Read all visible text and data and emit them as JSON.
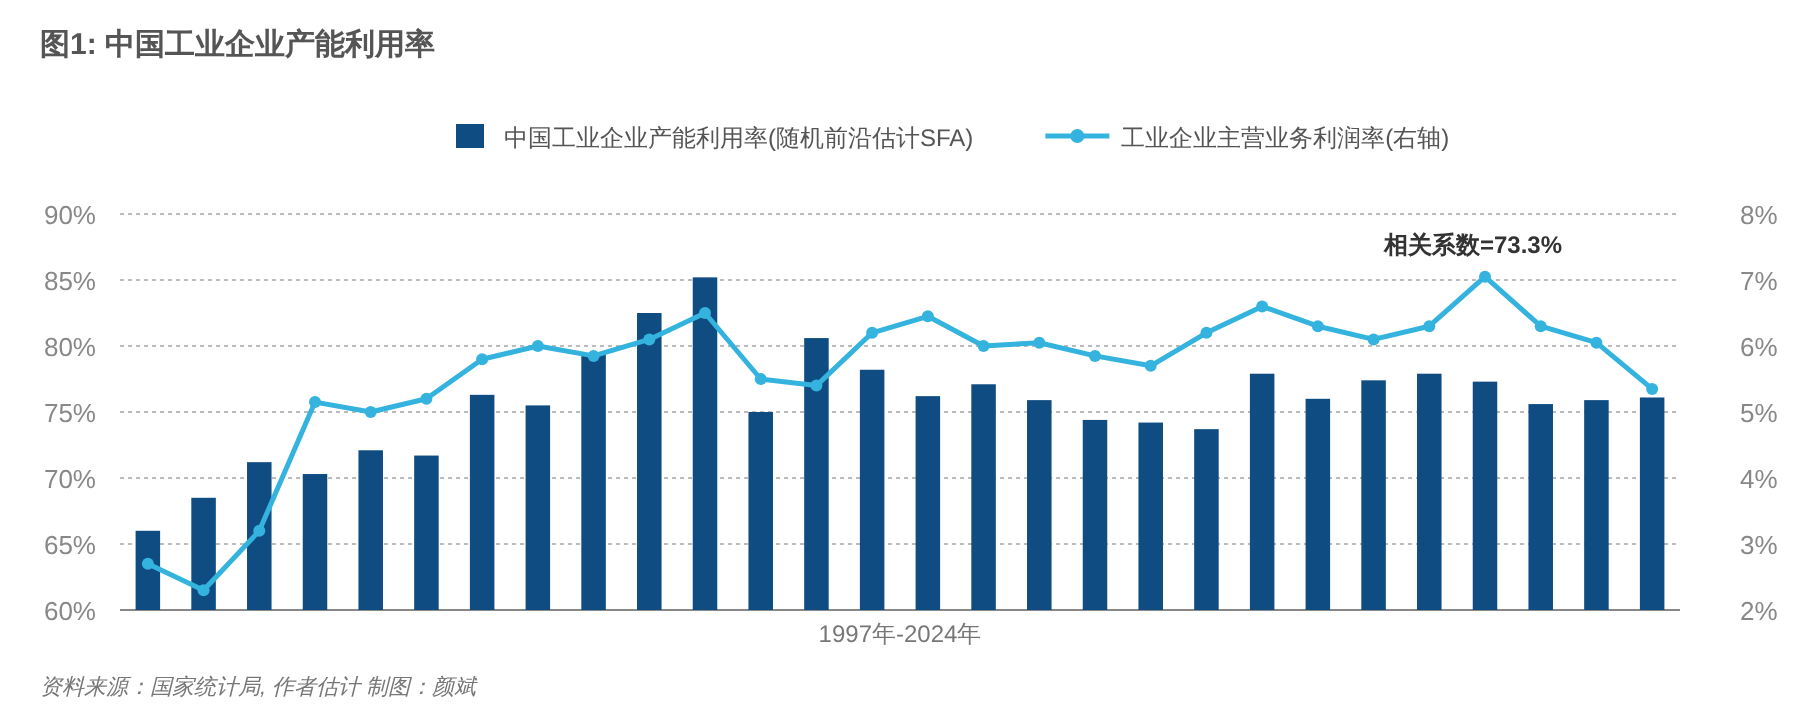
{
  "chart_data": {
    "type": "bar",
    "title": "图1: 中国工业企业产能利用率",
    "xlabel": "1997年-2024年",
    "legend": "top",
    "grid": "y",
    "marker": "circle",
    "line_style": "solid",
    "categories": [
      null,
      null,
      null,
      null,
      null,
      null,
      null,
      null,
      null,
      null,
      null,
      null,
      null,
      null,
      null,
      null,
      null,
      null,
      null,
      null,
      null,
      null,
      null,
      null,
      null,
      null,
      null,
      null
    ],
    "series": [
      {
        "name": "中国工业企业产能利用率(随机前沿估计SFA)",
        "color": "#0e4c82",
        "values": [
          66.0,
          68.5,
          71.2,
          70.3,
          72.1,
          71.7,
          76.3,
          75.5,
          79.4,
          82.5,
          85.2,
          75.0,
          80.6,
          78.2,
          76.2,
          77.1,
          75.9,
          74.4,
          74.2,
          73.7,
          77.9,
          76.0,
          77.4,
          77.9,
          77.3,
          75.6,
          75.9,
          76.1
        ]
      },
      {
        "name": "工业企业主营业务利润率(右轴)",
        "type": "line",
        "axis": "y2",
        "color": "#34b3de",
        "values": [
          2.7,
          2.3,
          3.2,
          5.15,
          5.0,
          5.2,
          5.8,
          6.0,
          5.85,
          6.1,
          6.5,
          5.5,
          5.4,
          6.2,
          6.45,
          6.0,
          6.05,
          5.85,
          5.7,
          6.2,
          6.6,
          6.3,
          6.1,
          6.3,
          7.05,
          6.3,
          6.05,
          5.35
        ]
      }
    ],
    "ylim": [
      60,
      90
    ],
    "yticks": [
      {
        "value": 60,
        "label": "60%"
      },
      {
        "value": 65,
        "label": "65%"
      },
      {
        "value": 70,
        "label": "70%"
      },
      {
        "value": 75,
        "label": "75%"
      },
      {
        "value": 80,
        "label": "80%"
      },
      {
        "value": 85,
        "label": "85%"
      },
      {
        "value": 90,
        "label": "90%"
      }
    ],
    "y2lim": [
      2,
      8
    ],
    "y2ticks": [
      {
        "value": 2,
        "label": "2%"
      },
      {
        "value": 3,
        "label": "3%"
      },
      {
        "value": 4,
        "label": "4%"
      },
      {
        "value": 5,
        "label": "5%"
      },
      {
        "value": 6,
        "label": "6%"
      },
      {
        "value": 7,
        "label": "7%"
      },
      {
        "value": 8,
        "label": "8%"
      }
    ],
    "annotations": [
      "相关系数=73.3%",
      "资料来源：国家统计局, 作者估计     制图：颜斌"
    ]
  }
}
